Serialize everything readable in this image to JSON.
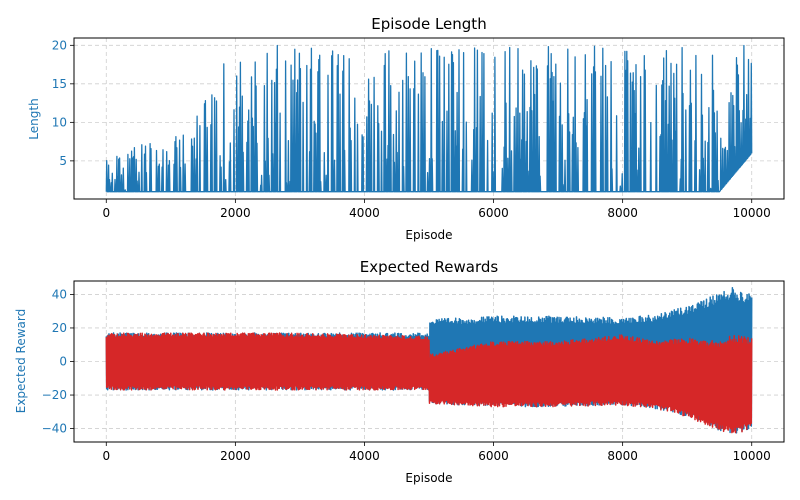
{
  "colors": {
    "primary": "#1f77b4",
    "secondary": "#d62728",
    "grid": "#b0b0b0"
  },
  "chart_data": [
    {
      "type": "line",
      "title": "Episode Length",
      "xlabel": "Episode",
      "ylabel": "Length",
      "xlim": [
        -500,
        10500
      ],
      "ylim": [
        0.05,
        20.95
      ],
      "xticks": [
        0,
        2000,
        4000,
        6000,
        8000,
        10000
      ],
      "yticks": [
        5,
        10,
        15,
        20
      ],
      "grid": true,
      "series": [
        {
          "color": "#1f77b4",
          "band": {
            "x": [
              0,
              500,
              1000,
              1500,
              1800,
              2000,
              2200,
              2500,
              2800,
              3000,
              3500,
              4000,
              5000,
              6000,
              7000,
              8000,
              9000,
              9500,
              10000
            ],
            "low": [
              1,
              1,
              1,
              1,
              1,
              1,
              1,
              1,
              1,
              1,
              1,
              1,
              1,
              1,
              1,
              1,
              1,
              1,
              6
            ],
            "high": [
              5,
              7,
              8,
              12,
              20,
              17,
              20,
              20,
              20,
              20,
              20,
              20,
              20,
              20,
              20,
              20,
              20,
              20,
              20
            ]
          }
        }
      ]
    },
    {
      "type": "line",
      "title": "Expected Rewards",
      "xlabel": "Episode",
      "ylabel": "Expected Reward",
      "xlim": [
        -500,
        10500
      ],
      "ylim": [
        -48,
        48
      ],
      "xticks": [
        0,
        2000,
        4000,
        6000,
        8000,
        10000
      ],
      "yticks": [
        -40,
        -20,
        0,
        20,
        40
      ],
      "grid": true,
      "series": [
        {
          "color": "#1f77b4",
          "band": {
            "x": [
              0,
              2500,
              5000,
              5001,
              6000,
              7000,
              8000,
              8500,
              9000,
              9500,
              9700,
              10000
            ],
            "low": [
              -17,
              -17,
              -17,
              -25,
              -27,
              -27,
              -26,
              -28,
              -33,
              -41,
              -44,
              -40
            ],
            "high": [
              17,
              17,
              17,
              25,
              27,
              27,
              26,
              28,
              33,
              41,
              44,
              40
            ]
          }
        },
        {
          "color": "#d62728",
          "band": {
            "x": [
              0,
              2700,
              4000,
              5000,
              5001,
              6000,
              7000,
              8000,
              8500,
              9000,
              9500,
              9700,
              10000
            ],
            "low": [
              -17,
              -17,
              -17,
              -17,
              -25,
              -27,
              -27,
              -26,
              -28,
              -33,
              -41,
              -44,
              -40
            ],
            "high": [
              17,
              17,
              16,
              15,
              4,
              12,
              12,
              16,
              12,
              14,
              12,
              16,
              14
            ]
          }
        }
      ]
    }
  ]
}
